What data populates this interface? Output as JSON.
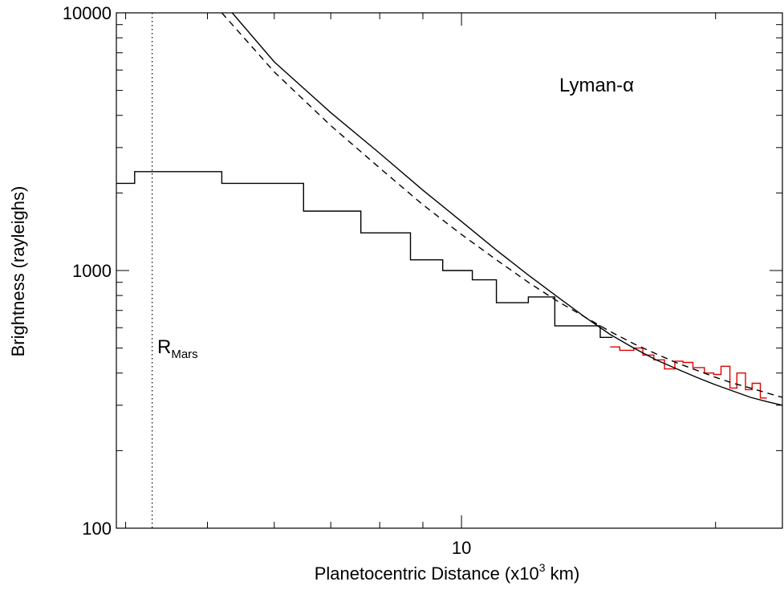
{
  "chart_data": {
    "type": "line",
    "title": "",
    "xlabel": "Planetocentric Distance (x10",
    "xlabel_sup": "3",
    "xlabel_suffix": " km)",
    "ylabel": "Brightness (rayleighs)",
    "x_scale": "log",
    "y_scale": "log",
    "xlim": [
      3.9,
      24
    ],
    "ylim": [
      100,
      10000
    ],
    "x_ticks": [
      {
        "value": 10,
        "label": "10"
      }
    ],
    "y_ticks": [
      {
        "value": 100,
        "label": "100"
      },
      {
        "value": 1000,
        "label": "1000"
      },
      {
        "value": 10000,
        "label": "10000"
      }
    ],
    "grid": false,
    "annotations": {
      "line_label": "Lyman-α",
      "rmars_main": "R",
      "rmars_sub": "Mars",
      "rmars_x": 4.3
    },
    "series": [
      {
        "style": "step",
        "color": "#000000",
        "points": [
          {
            "x0": 3.9,
            "x1": 4.1,
            "y": 2180
          },
          {
            "x0": 4.1,
            "x1": 5.2,
            "y": 2420
          },
          {
            "x0": 5.2,
            "x1": 6.5,
            "y": 2180
          },
          {
            "x0": 6.5,
            "x1": 7.6,
            "y": 1700
          },
          {
            "x0": 7.6,
            "x1": 8.7,
            "y": 1400
          },
          {
            "x0": 8.7,
            "x1": 9.5,
            "y": 1100
          },
          {
            "x0": 9.5,
            "x1": 10.3,
            "y": 1000
          },
          {
            "x0": 10.3,
            "x1": 11.0,
            "y": 920
          },
          {
            "x0": 11.0,
            "x1": 12.0,
            "y": 750
          },
          {
            "x0": 12.0,
            "x1": 12.9,
            "y": 790
          },
          {
            "x0": 12.9,
            "x1": 14.6,
            "y": 610
          },
          {
            "x0": 14.6,
            "x1": 15.1,
            "y": 550
          }
        ]
      },
      {
        "style": "step",
        "color": "#e00000",
        "points": [
          {
            "x0": 15.0,
            "x1": 15.4,
            "y": 505
          },
          {
            "x0": 15.4,
            "x1": 16.0,
            "y": 490
          },
          {
            "x0": 16.0,
            "x1": 16.4,
            "y": 500
          },
          {
            "x0": 16.4,
            "x1": 16.9,
            "y": 470
          },
          {
            "x0": 16.9,
            "x1": 17.4,
            "y": 450
          },
          {
            "x0": 17.4,
            "x1": 17.9,
            "y": 415
          },
          {
            "x0": 17.9,
            "x1": 18.3,
            "y": 445
          },
          {
            "x0": 18.3,
            "x1": 18.8,
            "y": 440
          },
          {
            "x0": 18.8,
            "x1": 19.4,
            "y": 420
          },
          {
            "x0": 19.4,
            "x1": 19.9,
            "y": 400
          },
          {
            "x0": 19.9,
            "x1": 20.3,
            "y": 395
          },
          {
            "x0": 20.3,
            "x1": 20.8,
            "y": 425
          },
          {
            "x0": 20.8,
            "x1": 21.2,
            "y": 350
          },
          {
            "x0": 21.2,
            "x1": 21.7,
            "y": 400
          },
          {
            "x0": 21.7,
            "x1": 22.1,
            "y": 345
          },
          {
            "x0": 22.1,
            "x1": 22.6,
            "y": 365
          },
          {
            "x0": 22.6,
            "x1": 23.0,
            "y": 320
          }
        ]
      },
      {
        "style": "solid",
        "color": "#000000",
        "x": [
          5.35,
          6.0,
          7.0,
          8.0,
          9.0,
          10.0,
          11.0,
          12.0,
          13.0,
          14.0,
          15.0,
          16.0,
          17.0,
          18.0,
          19.0,
          20.0,
          21.0,
          22.0,
          23.0,
          24.0
        ],
        "y": [
          10000,
          6450,
          4100,
          2850,
          2050,
          1550,
          1200,
          960,
          790,
          660,
          565,
          500,
          450,
          415,
          385,
          360,
          340,
          322,
          310,
          300
        ]
      },
      {
        "style": "dashed",
        "color": "#000000",
        "x": [
          5.2,
          6.0,
          7.0,
          8.0,
          9.0,
          10.0,
          11.0,
          12.0,
          13.0,
          14.0,
          15.0,
          16.0,
          17.0,
          18.0,
          19.0,
          20.0,
          21.0,
          22.0,
          23.0,
          24.0
        ],
        "y": [
          10000,
          5900,
          3650,
          2500,
          1800,
          1380,
          1100,
          900,
          760,
          660,
          580,
          520,
          475,
          438,
          410,
          385,
          365,
          350,
          335,
          322
        ]
      }
    ]
  }
}
